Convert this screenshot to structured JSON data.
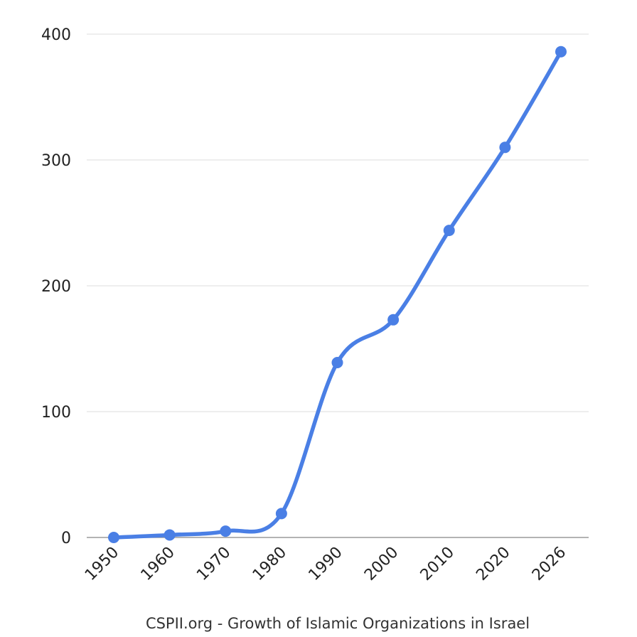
{
  "chart_data": {
    "type": "line",
    "caption": "CSPII.org - Growth of Islamic Organizations in Israel",
    "x": [
      "1950",
      "1960",
      "1970",
      "1980",
      "1990",
      "2000",
      "2010",
      "2020",
      "2026"
    ],
    "series": [
      {
        "values": [
          0,
          2,
          5,
          19,
          139,
          173,
          244,
          310,
          386
        ]
      }
    ],
    "ylim": [
      0,
      400
    ],
    "yticks": [
      0,
      100,
      200,
      300,
      400
    ],
    "grid": true,
    "legend": "none",
    "colors": {
      "line": "#4a7fe5",
      "grid": "#e3e3e3",
      "axis": "#9a9a9a"
    }
  }
}
